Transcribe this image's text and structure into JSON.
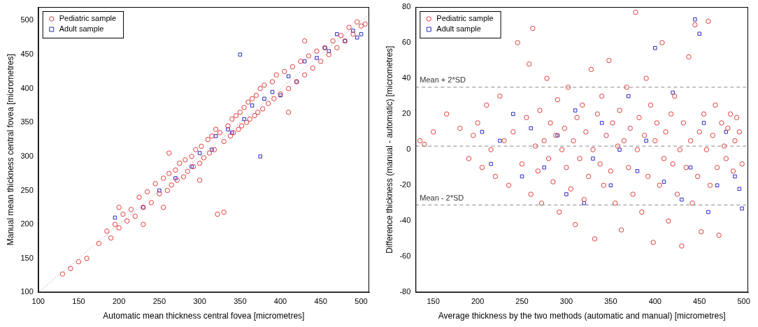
{
  "chart_data": [
    {
      "type": "scatter",
      "x_label": "Automatic mean thickness central fovea [micrometres]",
      "y_label": "Manual mean thickness central fovea [micrometres]",
      "xlim": [
        100,
        510
      ],
      "ylim": [
        100,
        520
      ],
      "xticks": [
        100,
        150,
        200,
        250,
        300,
        350,
        400,
        450,
        500
      ],
      "yticks": [
        100,
        150,
        200,
        250,
        300,
        350,
        400,
        450,
        500
      ],
      "grid": false,
      "legend": "upper left",
      "identity_line": {
        "x": [
          100,
          510
        ],
        "y": [
          100,
          510
        ],
        "line_style": "dotted",
        "color": "#888888"
      },
      "series": [
        {
          "name": "Pediatric sample",
          "color": "#e03c3c",
          "marker": "circle",
          "x": [
            130,
            140,
            150,
            160,
            175,
            185,
            190,
            195,
            200,
            205,
            210,
            215,
            220,
            225,
            230,
            235,
            240,
            245,
            250,
            255,
            260,
            262,
            265,
            270,
            272,
            275,
            280,
            282,
            285,
            290,
            292,
            295,
            300,
            302,
            305,
            310,
            312,
            315,
            318,
            320,
            322,
            325,
            330,
            330,
            335,
            338,
            340,
            342,
            345,
            348,
            350,
            352,
            355,
            358,
            360,
            362,
            365,
            368,
            370,
            372,
            375,
            378,
            380,
            385,
            390,
            392,
            395,
            400,
            405,
            410,
            415,
            420,
            425,
            430,
            435,
            440,
            445,
            450,
            455,
            460,
            465,
            470,
            475,
            480,
            485,
            490,
            495,
            500,
            505,
            262,
            255,
            300,
            410,
            430,
            200,
            230
          ],
          "y": [
            127,
            135,
            145,
            150,
            172,
            190,
            180,
            200,
            195,
            215,
            205,
            222,
            212,
            240,
            225,
            248,
            232,
            260,
            245,
            268,
            250,
            275,
            258,
            280,
            265,
            290,
            270,
            295,
            278,
            300,
            285,
            310,
            290,
            315,
            298,
            325,
            305,
            330,
            310,
            340,
            215,
            335,
            218,
            322,
            345,
            330,
            355,
            335,
            360,
            340,
            365,
            345,
            372,
            350,
            380,
            355,
            385,
            360,
            390,
            365,
            400,
            370,
            405,
            378,
            410,
            385,
            420,
            392,
            425,
            400,
            432,
            410,
            440,
            420,
            448,
            430,
            455,
            440,
            460,
            450,
            470,
            460,
            478,
            470,
            490,
            480,
            498,
            492,
            495,
            305,
            225,
            265,
            365,
            470,
            225,
            200
          ]
        },
        {
          "name": "Adult sample",
          "color": "#2828c8",
          "marker": "square",
          "x": [
            195,
            230,
            250,
            270,
            290,
            300,
            315,
            320,
            335,
            340,
            350,
            355,
            365,
            375,
            380,
            390,
            400,
            410,
            420,
            430,
            445,
            455,
            460,
            470,
            480,
            490,
            495,
            500
          ],
          "y": [
            210,
            225,
            250,
            268,
            285,
            305,
            310,
            330,
            340,
            335,
            450,
            355,
            375,
            300,
            385,
            395,
            390,
            418,
            410,
            440,
            445,
            460,
            455,
            480,
            470,
            485,
            475,
            480
          ]
        }
      ]
    },
    {
      "type": "scatter",
      "x_label": "Average thickness by the two methods (automatic and manual) [micrometres]",
      "y_label": "Difference thickness (manual - automatic) [micrometres]",
      "xlim": [
        130,
        505
      ],
      "ylim": [
        -80,
        80
      ],
      "xticks": [
        150,
        200,
        250,
        300,
        350,
        400,
        450,
        500
      ],
      "yticks": [
        -80,
        -60,
        -40,
        -20,
        0,
        20,
        40,
        60,
        80
      ],
      "grid": false,
      "legend": "upper left",
      "reference_lines": [
        {
          "value": 35,
          "label": "Mean + 2*SD",
          "line_style": "dashed",
          "color": "#888888"
        },
        {
          "value": 2,
          "line_style": "dashed",
          "color": "#888888"
        },
        {
          "value": -31,
          "label": "Mean - 2*SD",
          "line_style": "dashed",
          "color": "#888888"
        }
      ],
      "series": [
        {
          "name": "Pediatric sample",
          "color": "#e03c3c",
          "marker": "circle",
          "x": [
            135,
            140,
            150,
            165,
            180,
            190,
            195,
            200,
            205,
            210,
            215,
            220,
            225,
            230,
            235,
            240,
            245,
            250,
            255,
            258,
            260,
            262,
            265,
            268,
            270,
            272,
            275,
            278,
            280,
            282,
            285,
            288,
            290,
            292,
            295,
            298,
            300,
            302,
            305,
            308,
            310,
            312,
            315,
            318,
            320,
            322,
            325,
            328,
            330,
            332,
            335,
            338,
            340,
            342,
            345,
            348,
            350,
            352,
            355,
            358,
            360,
            362,
            365,
            368,
            370,
            372,
            375,
            378,
            380,
            382,
            385,
            388,
            390,
            392,
            395,
            398,
            400,
            402,
            405,
            408,
            410,
            412,
            415,
            418,
            420,
            422,
            425,
            428,
            430,
            432,
            435,
            438,
            440,
            442,
            445,
            448,
            450,
            452,
            455,
            458,
            460,
            462,
            465,
            468,
            470,
            472,
            475,
            478,
            480,
            482,
            485,
            488,
            490,
            492,
            495,
            498
          ],
          "y": [
            5,
            3,
            10,
            20,
            12,
            -5,
            8,
            15,
            -10,
            25,
            0,
            -15,
            30,
            5,
            -20,
            10,
            60,
            -8,
            18,
            48,
            -25,
            68,
            2,
            -12,
            22,
            -30,
            5,
            40,
            -5,
            15,
            -18,
            8,
            28,
            -35,
            0,
            12,
            -10,
            35,
            -22,
            5,
            -42,
            18,
            -5,
            25,
            -28,
            10,
            -15,
            45,
            0,
            -50,
            20,
            -8,
            30,
            -20,
            8,
            50,
            -12,
            15,
            -30,
            2,
            22,
            -45,
            5,
            35,
            -10,
            12,
            -25,
            77,
            0,
            18,
            -35,
            8,
            40,
            -15,
            25,
            -52,
            5,
            15,
            -20,
            60,
            -5,
            10,
            -40,
            20,
            -8,
            30,
            -25,
            0,
            -54,
            15,
            -10,
            52,
            5,
            -30,
            70,
            -15,
            10,
            -46,
            20,
            0,
            72,
            -20,
            8,
            25,
            -10,
            -48,
            15,
            2,
            -5,
            12,
            20,
            -12,
            5,
            18,
            10,
            -8
          ]
        },
        {
          "name": "Adult sample",
          "color": "#2828c8",
          "marker": "square",
          "x": [
            205,
            215,
            225,
            240,
            250,
            260,
            275,
            290,
            300,
            310,
            320,
            330,
            340,
            350,
            360,
            370,
            380,
            390,
            400,
            410,
            420,
            430,
            440,
            445,
            450,
            455,
            460,
            470,
            480,
            490,
            495,
            498
          ],
          "y": [
            10,
            -8,
            5,
            20,
            -15,
            12,
            -10,
            8,
            -25,
            22,
            -30,
            -5,
            15,
            -20,
            0,
            30,
            -12,
            5,
            57,
            -18,
            32,
            -28,
            -10,
            73,
            65,
            15,
            -35,
            -20,
            10,
            -15,
            -22,
            -33
          ]
        }
      ]
    }
  ]
}
